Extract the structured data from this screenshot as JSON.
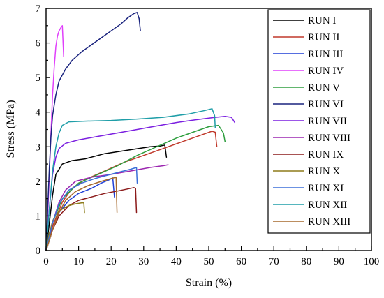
{
  "chart_data": {
    "type": "line",
    "xlabel": "Strain (%)",
    "ylabel": "Stress (MPa)",
    "xlim": [
      0,
      100
    ],
    "ylim": [
      0,
      7
    ],
    "x_ticks": [
      "0",
      "10",
      "20",
      "30",
      "40",
      "50",
      "60",
      "70",
      "80",
      "90",
      "100"
    ],
    "y_ticks": [
      "0",
      "1",
      "2",
      "3",
      "4",
      "5",
      "6",
      "7"
    ],
    "grid": false,
    "legend_position": "top-right",
    "series": [
      {
        "name": "RUN I",
        "color": "#000000",
        "points": [
          [
            0,
            0
          ],
          [
            1,
            0.8
          ],
          [
            2,
            1.6
          ],
          [
            3,
            2.2
          ],
          [
            5,
            2.5
          ],
          [
            8,
            2.6
          ],
          [
            12,
            2.65
          ],
          [
            18,
            2.8
          ],
          [
            25,
            2.9
          ],
          [
            32,
            3.0
          ],
          [
            35,
            3.02
          ],
          [
            36.5,
            3.05
          ],
          [
            37,
            2.7
          ]
        ]
      },
      {
        "name": "RUN II",
        "color": "#c0392b",
        "points": [
          [
            0,
            0
          ],
          [
            2,
            0.7
          ],
          [
            5,
            1.4
          ],
          [
            8,
            1.8
          ],
          [
            12,
            2.05
          ],
          [
            18,
            2.3
          ],
          [
            24,
            2.55
          ],
          [
            30,
            2.75
          ],
          [
            36,
            2.95
          ],
          [
            42,
            3.15
          ],
          [
            48,
            3.35
          ],
          [
            51,
            3.45
          ],
          [
            52,
            3.42
          ],
          [
            52.5,
            3.0
          ]
        ]
      },
      {
        "name": "RUN III",
        "color": "#1f3fd6",
        "points": [
          [
            0,
            0
          ],
          [
            2,
            0.6
          ],
          [
            4,
            1.1
          ],
          [
            7,
            1.45
          ],
          [
            10,
            1.65
          ],
          [
            14,
            1.8
          ],
          [
            17,
            1.95
          ],
          [
            19.5,
            2.05
          ],
          [
            20.5,
            2.1
          ],
          [
            21,
            1.55
          ]
        ]
      },
      {
        "name": "RUN IV",
        "color": "#e040fb",
        "points": [
          [
            0,
            0
          ],
          [
            0.5,
            1.0
          ],
          [
            1,
            2.2
          ],
          [
            1.5,
            3.4
          ],
          [
            2,
            4.5
          ],
          [
            2.5,
            5.3
          ],
          [
            3,
            5.9
          ],
          [
            3.5,
            6.2
          ],
          [
            4,
            6.35
          ],
          [
            4.6,
            6.45
          ],
          [
            5,
            6.5
          ],
          [
            5.4,
            5.6
          ]
        ]
      },
      {
        "name": "RUN V",
        "color": "#2e9e3e",
        "points": [
          [
            0,
            0
          ],
          [
            2,
            0.8
          ],
          [
            5,
            1.5
          ],
          [
            10,
            1.95
          ],
          [
            16,
            2.2
          ],
          [
            22,
            2.45
          ],
          [
            28,
            2.75
          ],
          [
            34,
            3.0
          ],
          [
            40,
            3.25
          ],
          [
            46,
            3.45
          ],
          [
            50,
            3.58
          ],
          [
            53,
            3.62
          ],
          [
            54.5,
            3.4
          ],
          [
            55,
            3.15
          ]
        ]
      },
      {
        "name": "RUN VI",
        "color": "#1a237e",
        "points": [
          [
            0,
            0
          ],
          [
            0.5,
            1.2
          ],
          [
            1,
            2.4
          ],
          [
            1.5,
            3.3
          ],
          [
            2,
            3.9
          ],
          [
            3,
            4.5
          ],
          [
            4,
            4.9
          ],
          [
            6,
            5.25
          ],
          [
            8,
            5.5
          ],
          [
            11,
            5.75
          ],
          [
            14,
            5.95
          ],
          [
            17,
            6.15
          ],
          [
            20,
            6.35
          ],
          [
            23,
            6.55
          ],
          [
            25,
            6.72
          ],
          [
            27,
            6.85
          ],
          [
            28,
            6.88
          ],
          [
            28.6,
            6.7
          ],
          [
            29,
            6.35
          ]
        ]
      },
      {
        "name": "RUN VII",
        "color": "#7b1fe0",
        "points": [
          [
            0,
            0
          ],
          [
            1,
            1.2
          ],
          [
            2,
            2.2
          ],
          [
            3,
            2.7
          ],
          [
            4,
            2.95
          ],
          [
            6,
            3.1
          ],
          [
            10,
            3.2
          ],
          [
            16,
            3.3
          ],
          [
            22,
            3.4
          ],
          [
            28,
            3.5
          ],
          [
            34,
            3.6
          ],
          [
            40,
            3.7
          ],
          [
            46,
            3.78
          ],
          [
            52,
            3.85
          ],
          [
            55,
            3.88
          ],
          [
            57,
            3.85
          ],
          [
            58,
            3.7
          ]
        ]
      },
      {
        "name": "RUN VIII",
        "color": "#9c27b0",
        "points": [
          [
            0,
            0
          ],
          [
            2,
            0.8
          ],
          [
            4,
            1.4
          ],
          [
            6,
            1.75
          ],
          [
            9,
            2.0
          ],
          [
            14,
            2.12
          ],
          [
            20,
            2.2
          ],
          [
            26,
            2.3
          ],
          [
            32,
            2.4
          ],
          [
            36,
            2.45
          ],
          [
            37.5,
            2.48
          ]
        ]
      },
      {
        "name": "RUN IX",
        "color": "#8b1a1a",
        "points": [
          [
            0,
            0
          ],
          [
            2,
            0.6
          ],
          [
            4,
            1.0
          ],
          [
            7,
            1.3
          ],
          [
            10,
            1.45
          ],
          [
            14,
            1.55
          ],
          [
            18,
            1.65
          ],
          [
            22,
            1.72
          ],
          [
            25,
            1.78
          ],
          [
            27,
            1.82
          ],
          [
            27.5,
            1.8
          ],
          [
            27.8,
            1.1
          ]
        ]
      },
      {
        "name": "RUN X",
        "color": "#8d7b1a",
        "points": [
          [
            0,
            0
          ],
          [
            1,
            0.5
          ],
          [
            2,
            0.85
          ],
          [
            3,
            1.05
          ],
          [
            5,
            1.2
          ],
          [
            7,
            1.3
          ],
          [
            9,
            1.35
          ],
          [
            11,
            1.38
          ],
          [
            11.6,
            1.38
          ],
          [
            11.8,
            1.1
          ]
        ]
      },
      {
        "name": "RUN XI",
        "color": "#3b6fd8",
        "points": [
          [
            0,
            0
          ],
          [
            2,
            0.8
          ],
          [
            4,
            1.35
          ],
          [
            7,
            1.75
          ],
          [
            11,
            1.95
          ],
          [
            15,
            2.08
          ],
          [
            19,
            2.18
          ],
          [
            23,
            2.28
          ],
          [
            26,
            2.35
          ],
          [
            27.8,
            2.4
          ],
          [
            28,
            1.95
          ]
        ]
      },
      {
        "name": "RUN XII",
        "color": "#1f9ea8",
        "points": [
          [
            0,
            0
          ],
          [
            1,
            1.2
          ],
          [
            2,
            2.3
          ],
          [
            3,
            3.0
          ],
          [
            4,
            3.4
          ],
          [
            5,
            3.62
          ],
          [
            7,
            3.72
          ],
          [
            12,
            3.74
          ],
          [
            20,
            3.76
          ],
          [
            28,
            3.8
          ],
          [
            36,
            3.85
          ],
          [
            44,
            3.95
          ],
          [
            49,
            4.05
          ],
          [
            51,
            4.1
          ],
          [
            51.8,
            3.9
          ],
          [
            52,
            3.55
          ]
        ]
      },
      {
        "name": "RUN XIII",
        "color": "#a6692c",
        "points": [
          [
            0,
            0
          ],
          [
            2,
            0.6
          ],
          [
            4,
            1.1
          ],
          [
            6,
            1.45
          ],
          [
            9,
            1.7
          ],
          [
            13,
            1.88
          ],
          [
            17,
            2.0
          ],
          [
            20,
            2.08
          ],
          [
            21.5,
            2.12
          ],
          [
            21.8,
            1.1
          ]
        ]
      }
    ]
  }
}
